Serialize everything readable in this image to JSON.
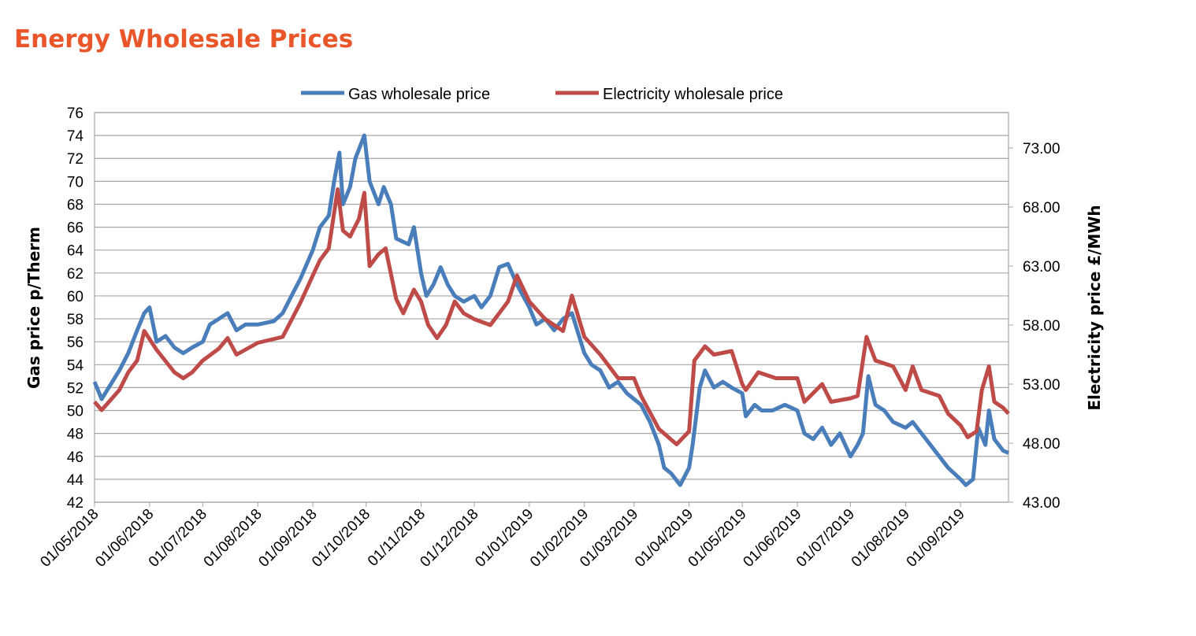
{
  "chart_data": {
    "type": "line",
    "title": "Energy Wholesale Prices",
    "y_label": "Gas price p/Therm",
    "y2_label": "Electricity price £/MWh",
    "xlim": [
      "01/05/2018",
      "28/09/2019"
    ],
    "xticks": [
      "01/05/2018",
      "01/06/2018",
      "01/07/2018",
      "01/08/2018",
      "01/09/2018",
      "01/10/2018",
      "01/11/2018",
      "01/12/2018",
      "01/01/2019",
      "01/02/2019",
      "01/03/2019",
      "01/04/2019",
      "01/05/2019",
      "01/06/2019",
      "01/07/2019",
      "01/08/2019",
      "01/09/2019"
    ],
    "ylim": [
      42,
      76
    ],
    "yticks": [
      42,
      44,
      46,
      48,
      50,
      52,
      54,
      56,
      58,
      60,
      62,
      64,
      66,
      68,
      70,
      72,
      74,
      76
    ],
    "y2lim": [
      43,
      76
    ],
    "y2ticks": [
      {
        "value": 43,
        "label": "43.00"
      },
      {
        "value": 48,
        "label": "48.00"
      },
      {
        "value": 53,
        "label": "53.00"
      },
      {
        "value": 58,
        "label": "58.00"
      },
      {
        "value": 63,
        "label": "63.00"
      },
      {
        "value": 68,
        "label": "68.00"
      },
      {
        "value": 73,
        "label": "73.00"
      }
    ],
    "grid": true,
    "legend": "top",
    "series": [
      {
        "name": "Gas wholesale price",
        "color": "#4a7ebb",
        "x": [
          "01/05/2018",
          "05/05/2018",
          "15/05/2018",
          "20/05/2018",
          "25/05/2018",
          "29/05/2018",
          "01/06/2018",
          "05/06/2018",
          "10/06/2018",
          "15/06/2018",
          "20/06/2018",
          "25/06/2018",
          "01/07/2018",
          "05/07/2018",
          "10/07/2018",
          "15/07/2018",
          "20/07/2018",
          "25/07/2018",
          "01/08/2018",
          "10/08/2018",
          "15/08/2018",
          "20/08/2018",
          "25/08/2018",
          "01/09/2018",
          "05/09/2018",
          "10/09/2018",
          "13/09/2018",
          "16/09/2018",
          "18/09/2018",
          "22/09/2018",
          "25/09/2018",
          "30/09/2018",
          "03/10/2018",
          "08/10/2018",
          "11/10/2018",
          "15/10/2018",
          "18/10/2018",
          "25/10/2018",
          "28/10/2018",
          "01/11/2018",
          "04/11/2018",
          "08/11/2018",
          "12/11/2018",
          "16/11/2018",
          "20/11/2018",
          "25/11/2018",
          "01/12/2018",
          "05/12/2018",
          "10/12/2018",
          "15/12/2018",
          "20/12/2018",
          "25/12/2018",
          "01/01/2019",
          "05/01/2019",
          "10/01/2019",
          "15/01/2019",
          "20/01/2019",
          "25/01/2019",
          "28/01/2019",
          "01/02/2019",
          "05/02/2019",
          "10/02/2019",
          "15/02/2019",
          "20/02/2019",
          "25/02/2019",
          "01/03/2019",
          "05/03/2019",
          "10/03/2019",
          "15/03/2019",
          "18/03/2019",
          "22/03/2019",
          "27/03/2019",
          "01/04/2019",
          "03/04/2019",
          "07/04/2019",
          "10/04/2019",
          "15/04/2019",
          "20/04/2019",
          "25/04/2019",
          "01/05/2019",
          "03/05/2019",
          "08/05/2019",
          "12/05/2019",
          "18/05/2019",
          "25/05/2019",
          "01/06/2019",
          "05/06/2019",
          "10/06/2019",
          "15/06/2019",
          "20/06/2019",
          "25/06/2019",
          "01/07/2019",
          "05/07/2019",
          "08/07/2019",
          "11/07/2019",
          "15/07/2019",
          "20/07/2019",
          "25/07/2019",
          "01/08/2019",
          "05/08/2019",
          "10/08/2019",
          "15/08/2019",
          "20/08/2019",
          "25/08/2019",
          "01/09/2019",
          "04/09/2019",
          "08/09/2019",
          "11/09/2019",
          "15/09/2019",
          "17/09/2019",
          "20/09/2019",
          "25/09/2019",
          "28/09/2019"
        ],
        "values": [
          52.5,
          51,
          53.5,
          55,
          57,
          58.5,
          59,
          56,
          56.5,
          55.5,
          55,
          55.5,
          56,
          57.5,
          58,
          58.5,
          57,
          57.5,
          57.5,
          57.8,
          58.5,
          60,
          61.5,
          64,
          66,
          67,
          70,
          72.5,
          68,
          69.5,
          72,
          74,
          70,
          68,
          69.5,
          68,
          65,
          64.5,
          66,
          62,
          60,
          61,
          62.5,
          61,
          60,
          59.5,
          60,
          59,
          60,
          62.5,
          62.8,
          61,
          59,
          57.5,
          58,
          57,
          58,
          58.5,
          57,
          55,
          54,
          53.5,
          52,
          52.5,
          51.5,
          51,
          50.5,
          49,
          47,
          45,
          44.5,
          43.5,
          45,
          47,
          52,
          53.5,
          52,
          52.5,
          52,
          51.5,
          49.5,
          50.5,
          50,
          50,
          50.5,
          50,
          48,
          47.5,
          48.5,
          47,
          48,
          46,
          47,
          48,
          53,
          50.5,
          50,
          49,
          48.5,
          49,
          48,
          47,
          46,
          45,
          44,
          43.5,
          44,
          48.5,
          47,
          50,
          47.5,
          46.5,
          46.3
        ]
      },
      {
        "name": "Electricity wholesale price",
        "color": "#be4b48",
        "axis": "y2",
        "x": [
          "01/05/2018",
          "05/05/2018",
          "15/05/2018",
          "20/05/2018",
          "25/05/2018",
          "29/05/2018",
          "05/06/2018",
          "15/06/2018",
          "20/06/2018",
          "25/06/2018",
          "01/07/2018",
          "10/07/2018",
          "15/07/2018",
          "20/07/2018",
          "01/08/2018",
          "15/08/2018",
          "25/08/2018",
          "01/09/2018",
          "05/09/2018",
          "10/09/2018",
          "15/09/2018",
          "18/09/2018",
          "22/09/2018",
          "27/09/2018",
          "30/09/2018",
          "03/10/2018",
          "08/10/2018",
          "12/10/2018",
          "18/10/2018",
          "22/10/2018",
          "28/10/2018",
          "01/11/2018",
          "05/11/2018",
          "10/11/2018",
          "15/11/2018",
          "20/11/2018",
          "25/11/2018",
          "01/12/2018",
          "10/12/2018",
          "15/12/2018",
          "20/12/2018",
          "25/12/2018",
          "01/01/2019",
          "10/01/2019",
          "20/01/2019",
          "25/01/2019",
          "01/02/2019",
          "10/02/2019",
          "15/02/2019",
          "20/02/2019",
          "01/03/2019",
          "05/03/2019",
          "15/03/2019",
          "25/03/2019",
          "01/04/2019",
          "04/04/2019",
          "10/04/2019",
          "15/04/2019",
          "25/04/2019",
          "01/05/2019",
          "03/05/2019",
          "10/05/2019",
          "20/05/2019",
          "01/06/2019",
          "05/06/2019",
          "15/06/2019",
          "20/06/2019",
          "01/07/2019",
          "05/07/2019",
          "10/07/2019",
          "15/07/2019",
          "25/07/2019",
          "01/08/2019",
          "05/08/2019",
          "10/08/2019",
          "20/08/2019",
          "25/08/2019",
          "01/09/2019",
          "05/09/2019",
          "10/09/2019",
          "13/09/2019",
          "17/09/2019",
          "20/09/2019",
          "25/09/2019",
          "28/09/2019"
        ],
        "values": [
          51.5,
          50.8,
          52.5,
          54,
          55,
          57.5,
          55.9,
          54,
          53.5,
          54,
          55,
          56,
          56.9,
          55.5,
          56.5,
          57,
          59.9,
          62.2,
          63.5,
          64.5,
          69.5,
          66,
          65.5,
          67,
          69.2,
          63,
          64,
          64.5,
          60.2,
          59,
          61,
          60,
          58,
          56.9,
          58,
          60,
          59,
          58.5,
          58,
          59,
          60,
          62.2,
          60,
          58.5,
          57.5,
          60.5,
          57,
          55.5,
          54.5,
          53.5,
          53.5,
          52,
          49.2,
          47.9,
          49,
          55,
          56.2,
          55.5,
          55.8,
          53,
          52.5,
          54,
          53.5,
          53.5,
          51.5,
          53,
          51.5,
          51.8,
          52,
          57,
          55,
          54.5,
          52.5,
          54.5,
          52.5,
          52,
          50.5,
          49.5,
          48.5,
          49,
          52.5,
          54.5,
          51.5,
          51,
          50.5
        ]
      }
    ]
  }
}
